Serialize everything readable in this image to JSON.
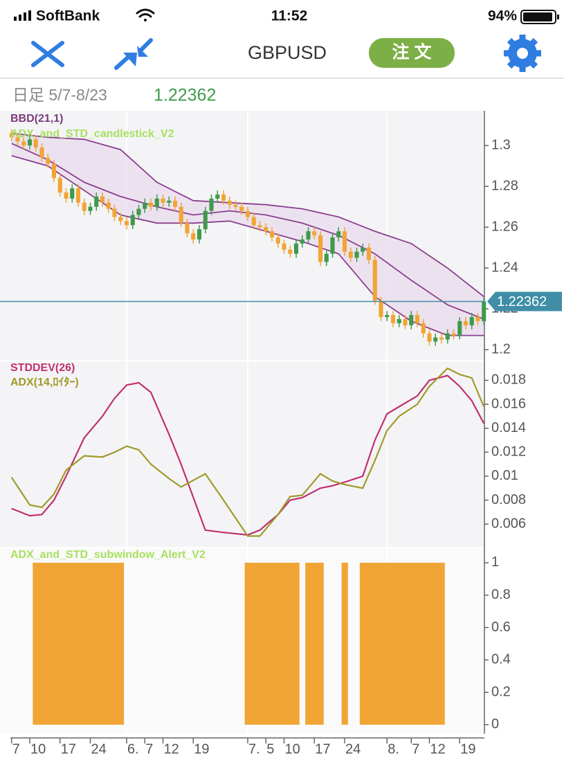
{
  "status_bar": {
    "carrier": "SoftBank",
    "time": "11:52",
    "battery": "94%"
  },
  "toolbar": {
    "symbol": "GBPUSD",
    "order_button": "注 文"
  },
  "info": {
    "period": "日足 5/7-8/23",
    "price": "1.22362"
  },
  "chart_data": [
    {
      "type": "candlestick",
      "labels": [
        "BBD(21,1)",
        "ADX_and_STD_candlestick_V2"
      ],
      "label_colors": [
        "#7a3a7a",
        "#a8e060"
      ],
      "xlim": [
        -1.914,
        78.086
      ],
      "ylim": [
        1.195,
        1.317
      ],
      "yticks": [
        1.2,
        1.22,
        1.24,
        1.26,
        1.28,
        1.3
      ],
      "up_color": "#3f9a4c",
      "down_color": "#f0a535",
      "current_price": 1.22362,
      "current_price_color": "#3f8ea6",
      "x": [
        0,
        1,
        2,
        3,
        4,
        5,
        6,
        7,
        8,
        9,
        10,
        11,
        12,
        13,
        14,
        15,
        16,
        17,
        18,
        19,
        20,
        21,
        22,
        23,
        24,
        25,
        26,
        27,
        28,
        29,
        30,
        31,
        32,
        33,
        34,
        35,
        36,
        37,
        38,
        39,
        40,
        41,
        42,
        43,
        44,
        45,
        46,
        47,
        48,
        49,
        50,
        51,
        52,
        53,
        54,
        55,
        56,
        57,
        58,
        59,
        60,
        61,
        62,
        63,
        64,
        65,
        66,
        67,
        68,
        69,
        70,
        71,
        72,
        73,
        74,
        75,
        76,
        77,
        78
      ],
      "open": [
        1.306,
        1.304,
        1.302,
        1.3,
        1.303,
        1.299,
        1.294,
        1.291,
        1.284,
        1.277,
        1.274,
        1.279,
        1.272,
        1.268,
        1.27,
        1.275,
        1.272,
        1.269,
        1.265,
        1.263,
        1.261,
        1.266,
        1.269,
        1.272,
        1.27,
        1.274,
        1.272,
        1.273,
        1.27,
        1.262,
        1.257,
        1.254,
        1.259,
        1.268,
        1.274,
        1.276,
        1.273,
        1.271,
        1.27,
        1.268,
        1.265,
        1.261,
        1.26,
        1.258,
        1.255,
        1.252,
        1.249,
        1.247,
        1.252,
        1.254,
        1.258,
        1.256,
        1.243,
        1.247,
        1.255,
        1.258,
        1.248,
        1.245,
        1.248,
        1.25,
        1.244,
        1.224,
        1.216,
        1.217,
        1.213,
        1.215,
        1.212,
        1.217,
        1.213,
        1.208,
        1.204,
        1.206,
        1.205,
        1.208,
        1.207,
        1.214,
        1.212,
        1.216,
        1.214
      ],
      "high": [
        1.308,
        1.306,
        1.304,
        1.305,
        1.305,
        1.301,
        1.296,
        1.293,
        1.286,
        1.279,
        1.281,
        1.281,
        1.274,
        1.272,
        1.277,
        1.277,
        1.274,
        1.271,
        1.267,
        1.265,
        1.268,
        1.271,
        1.274,
        1.274,
        1.276,
        1.276,
        1.275,
        1.275,
        1.272,
        1.264,
        1.259,
        1.261,
        1.27,
        1.276,
        1.278,
        1.278,
        1.275,
        1.273,
        1.272,
        1.27,
        1.267,
        1.263,
        1.262,
        1.26,
        1.257,
        1.254,
        1.251,
        1.254,
        1.256,
        1.26,
        1.26,
        1.258,
        1.249,
        1.257,
        1.26,
        1.26,
        1.25,
        1.25,
        1.252,
        1.252,
        1.246,
        1.226,
        1.219,
        1.219,
        1.217,
        1.217,
        1.219,
        1.219,
        1.215,
        1.21,
        1.208,
        1.208,
        1.21,
        1.21,
        1.216,
        1.216,
        1.218,
        1.218,
        1.2256
      ],
      "low": [
        1.302,
        1.3,
        1.298,
        1.298,
        1.297,
        1.292,
        1.289,
        1.282,
        1.275,
        1.272,
        1.272,
        1.27,
        1.266,
        1.266,
        1.268,
        1.27,
        1.267,
        1.263,
        1.261,
        1.259,
        1.259,
        1.264,
        1.267,
        1.268,
        1.268,
        1.27,
        1.27,
        1.268,
        1.26,
        1.255,
        1.252,
        1.252,
        1.257,
        1.266,
        1.272,
        1.271,
        1.269,
        1.268,
        1.266,
        1.263,
        1.259,
        1.258,
        1.256,
        1.253,
        1.25,
        1.247,
        1.245,
        1.245,
        1.25,
        1.252,
        1.254,
        1.241,
        1.241,
        1.245,
        1.253,
        1.246,
        1.243,
        1.243,
        1.246,
        1.242,
        1.222,
        1.214,
        1.214,
        1.211,
        1.211,
        1.21,
        1.21,
        1.211,
        1.206,
        1.202,
        1.202,
        1.203,
        1.203,
        1.205,
        1.205,
        1.21,
        1.21,
        1.212,
        1.212
      ],
      "close": [
        1.304,
        1.302,
        1.3,
        1.303,
        1.299,
        1.294,
        1.291,
        1.284,
        1.277,
        1.274,
        1.279,
        1.272,
        1.268,
        1.27,
        1.275,
        1.272,
        1.269,
        1.265,
        1.263,
        1.261,
        1.266,
        1.269,
        1.272,
        1.27,
        1.274,
        1.272,
        1.273,
        1.27,
        1.262,
        1.257,
        1.254,
        1.259,
        1.268,
        1.274,
        1.276,
        1.273,
        1.271,
        1.27,
        1.268,
        1.265,
        1.261,
        1.26,
        1.258,
        1.255,
        1.252,
        1.249,
        1.247,
        1.252,
        1.254,
        1.258,
        1.256,
        1.243,
        1.247,
        1.255,
        1.258,
        1.248,
        1.245,
        1.248,
        1.25,
        1.244,
        1.224,
        1.216,
        1.217,
        1.213,
        1.215,
        1.212,
        1.217,
        1.213,
        1.208,
        1.204,
        1.206,
        1.205,
        1.208,
        1.207,
        1.214,
        1.212,
        1.216,
        1.214,
        1.2236
      ],
      "bands": {
        "color": "#8a3f8f",
        "fill": "#eadcec",
        "x": [
          0,
          6,
          12,
          18,
          24,
          30,
          36,
          42,
          48,
          54,
          60,
          66,
          72,
          78
        ],
        "upper": [
          1.306,
          1.304,
          1.303,
          1.298,
          1.282,
          1.273,
          1.272,
          1.271,
          1.269,
          1.265,
          1.258,
          1.252,
          1.24,
          1.226
        ],
        "middle": [
          1.301,
          1.293,
          1.282,
          1.275,
          1.27,
          1.266,
          1.268,
          1.266,
          1.262,
          1.256,
          1.247,
          1.234,
          1.222,
          1.215
        ],
        "lower": [
          1.295,
          1.29,
          1.278,
          1.266,
          1.262,
          1.262,
          1.263,
          1.258,
          1.253,
          1.247,
          1.226,
          1.214,
          1.207,
          1.207
        ]
      }
    },
    {
      "type": "line",
      "xlim": [
        -1.914,
        78.086
      ],
      "ylim": [
        0.0041,
        0.0197
      ],
      "yticks": [
        0.006,
        0.008,
        0.01,
        0.012,
        0.014,
        0.016,
        0.018
      ],
      "x": [
        0,
        3,
        5,
        7,
        9,
        12,
        15,
        17,
        19,
        21,
        23,
        26,
        28,
        32,
        35,
        39,
        41,
        44,
        46,
        48,
        51,
        53,
        55,
        58,
        60,
        62,
        64,
        67,
        69,
        72,
        74,
        76,
        78
      ],
      "series": [
        {
          "name": "STDDEV(26)",
          "color": "#c0306e",
          "values": [
            0.0073,
            0.0067,
            0.0068,
            0.008,
            0.01,
            0.0132,
            0.015,
            0.0165,
            0.0176,
            0.0178,
            0.017,
            0.0135,
            0.011,
            0.0055,
            0.0053,
            0.0051,
            0.0055,
            0.0068,
            0.008,
            0.0082,
            0.009,
            0.0092,
            0.0095,
            0.01,
            0.013,
            0.0152,
            0.0158,
            0.0167,
            0.018,
            0.0184,
            0.0175,
            0.0163,
            0.0144
          ]
        },
        {
          "name": "ADX(14,ﾛｲﾀｰ)",
          "color": "#a09a28",
          "values": [
            0.0099,
            0.0076,
            0.0074,
            0.0085,
            0.0105,
            0.0117,
            0.0116,
            0.012,
            0.0125,
            0.0122,
            0.011,
            0.0098,
            0.0091,
            0.0102,
            0.008,
            0.005,
            0.005,
            0.0068,
            0.0083,
            0.0084,
            0.0102,
            0.0096,
            0.0093,
            0.009,
            0.0113,
            0.0138,
            0.015,
            0.016,
            0.0175,
            0.019,
            0.0185,
            0.0182,
            0.0158
          ]
        }
      ]
    },
    {
      "type": "bar",
      "title": "ADX_and_STD_subwindow_Alert_V2",
      "title_color": "#a8e060",
      "color": "#f0a535",
      "xlim": [
        -1.914,
        78.086
      ],
      "ylim": [
        -0.056,
        1.098
      ],
      "yticks": [
        0,
        0.2,
        0.4,
        0.6,
        0.8,
        1
      ],
      "x": [
        0,
        1,
        2,
        3,
        4,
        5,
        6,
        7,
        8,
        9,
        10,
        11,
        12,
        13,
        14,
        15,
        16,
        17,
        18,
        19,
        20,
        21,
        22,
        23,
        24,
        25,
        26,
        27,
        28,
        29,
        30,
        31,
        32,
        33,
        34,
        35,
        36,
        37,
        38,
        39,
        40,
        41,
        42,
        43,
        44,
        45,
        46,
        47,
        48,
        49,
        50,
        51,
        52,
        53,
        54,
        55,
        56,
        57,
        58,
        59,
        60,
        61,
        62,
        63,
        64,
        65,
        66,
        67,
        68,
        69,
        70,
        71,
        72,
        73,
        74,
        75,
        76,
        77,
        78
      ],
      "values": [
        0,
        0,
        0,
        0,
        1,
        1,
        1,
        1,
        1,
        1,
        1,
        1,
        1,
        1,
        1,
        1,
        1,
        1,
        1,
        0,
        0,
        0,
        0,
        0,
        0,
        0,
        0,
        0,
        0,
        0,
        0,
        0,
        0,
        0,
        0,
        0,
        0,
        0,
        0,
        1,
        1,
        1,
        1,
        1,
        1,
        1,
        1,
        1,
        0,
        1,
        1,
        1,
        0,
        0,
        0,
        1,
        0,
        0,
        1,
        1,
        1,
        1,
        1,
        1,
        1,
        1,
        1,
        1,
        1,
        1,
        1,
        1,
        0,
        0,
        0,
        0,
        0,
        0,
        0
      ],
      "xticks": [
        {
          "value": 0,
          "label": "7"
        },
        {
          "value": 3,
          "label": "10"
        },
        {
          "value": 8,
          "label": "17"
        },
        {
          "value": 13,
          "label": "24"
        },
        {
          "value": 19,
          "label": "6."
        },
        {
          "value": 22,
          "label": "7"
        },
        {
          "value": 25,
          "label": "12"
        },
        {
          "value": 30,
          "label": "19"
        },
        {
          "value": 39,
          "label": "7."
        },
        {
          "value": 42,
          "label": "5"
        },
        {
          "value": 45,
          "label": "10"
        },
        {
          "value": 50,
          "label": "17"
        },
        {
          "value": 55,
          "label": "24"
        },
        {
          "value": 62,
          "label": "8."
        },
        {
          "value": 66,
          "label": "7"
        },
        {
          "value": 69,
          "label": "12"
        },
        {
          "value": 74,
          "label": "19"
        }
      ]
    }
  ]
}
